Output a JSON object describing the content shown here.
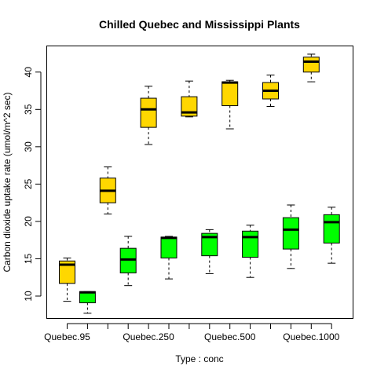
{
  "chart_data": {
    "type": "boxplot",
    "title": "Chilled Quebec and Mississippi Plants",
    "xlabel": "Type : conc",
    "ylabel": "Carbon dioxide uptake rate (umol/m^2 sec)",
    "ylim": [
      7,
      43.5
    ],
    "y_ticks": [
      10,
      15,
      20,
      25,
      30,
      35,
      40
    ],
    "x_tick_labels": [
      "Quebec.95",
      "",
      "Quebec.250",
      "",
      "Quebec.500",
      "",
      "Quebec.1000",
      ""
    ],
    "boxes": [
      {
        "category": "Quebec.95",
        "min": 9.3,
        "q1": 11.7,
        "median": 14.2,
        "q3": 14.7,
        "max": 15.1,
        "color": "#FFD700"
      },
      {
        "category": "",
        "min": 7.7,
        "q1": 9.1,
        "median": 10.5,
        "q3": 10.6,
        "max": 10.6,
        "color": "#00FF00"
      },
      {
        "category": "",
        "min": 21.0,
        "q1": 22.5,
        "median": 24.1,
        "q3": 25.8,
        "max": 27.3,
        "color": "#FFD700"
      },
      {
        "category": "",
        "min": 11.4,
        "q1": 13.1,
        "median": 14.9,
        "q3": 16.4,
        "max": 18.0,
        "color": "#00FF00"
      },
      {
        "category": "Quebec.250",
        "min": 30.3,
        "q1": 32.6,
        "median": 35.0,
        "q3": 36.5,
        "max": 38.1,
        "color": "#FFD700"
      },
      {
        "category": "",
        "min": 12.3,
        "q1": 15.1,
        "median": 17.8,
        "q3": 17.9,
        "max": 18.0,
        "color": "#00FF00"
      },
      {
        "category": "",
        "min": 34.0,
        "q1": 34.1,
        "median": 34.6,
        "q3": 36.7,
        "max": 38.8,
        "color": "#FFD700"
      },
      {
        "category": "",
        "min": 13.0,
        "q1": 15.4,
        "median": 17.9,
        "q3": 18.4,
        "max": 18.9,
        "color": "#00FF00"
      },
      {
        "category": "Quebec.500",
        "min": 32.4,
        "q1": 35.5,
        "median": 38.6,
        "q3": 38.7,
        "max": 38.9,
        "color": "#FFD700"
      },
      {
        "category": "",
        "min": 12.5,
        "q1": 15.2,
        "median": 17.9,
        "q3": 18.7,
        "max": 19.5,
        "color": "#00FF00"
      },
      {
        "category": "",
        "min": 35.4,
        "q1": 36.4,
        "median": 37.5,
        "q3": 38.6,
        "max": 39.6,
        "color": "#FFD700"
      },
      {
        "category": "",
        "min": 13.7,
        "q1": 16.3,
        "median": 18.9,
        "q3": 20.5,
        "max": 22.2,
        "color": "#00FF00"
      },
      {
        "category": "Quebec.1000",
        "min": 38.7,
        "q1": 40.0,
        "median": 41.4,
        "q3": 42.0,
        "max": 42.4,
        "color": "#FFD700"
      },
      {
        "category": "",
        "min": 14.4,
        "q1": 17.1,
        "median": 19.9,
        "q3": 20.9,
        "max": 21.9,
        "color": "#00FF00"
      }
    ]
  }
}
